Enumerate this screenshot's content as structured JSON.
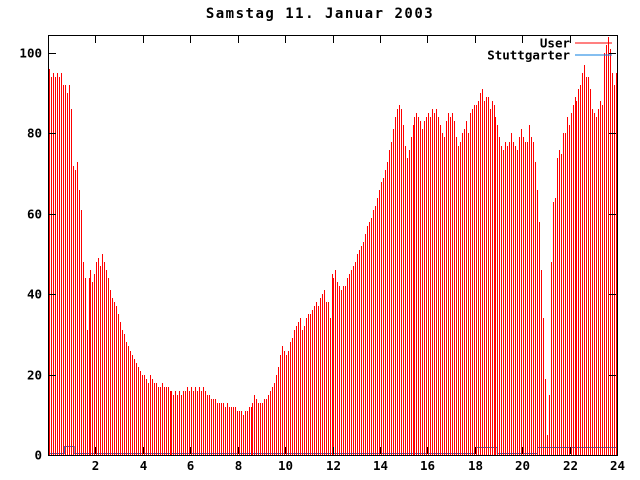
{
  "chart": {
    "title": "Samstag 11. Januar 2003",
    "background_color": "#ffffff",
    "axis_color": "#000000",
    "legend_position": "top-right-inside"
  },
  "chart_data": {
    "type": "bar",
    "title": "Samstag 11. Januar 2003",
    "xlabel": "",
    "ylabel": "",
    "x_unit": "hour-of-day",
    "interval_minutes": 5,
    "xlim": [
      0,
      24
    ],
    "ylim": [
      0,
      104.5
    ],
    "xticks": [
      2,
      4,
      6,
      8,
      10,
      12,
      14,
      16,
      18,
      20,
      22,
      24
    ],
    "yticks": [
      0,
      20,
      40,
      60,
      80,
      100
    ],
    "grid": false,
    "legend_position": "top-right-inside",
    "series": [
      {
        "name": "User",
        "style": "impulses",
        "color": "#ff0000",
        "values": [
          96,
          94,
          95,
          94,
          95,
          94,
          95,
          92,
          92,
          90,
          92,
          86,
          72,
          71,
          73,
          66,
          61,
          48,
          44,
          31,
          44,
          46,
          43,
          45,
          48,
          49,
          47,
          50,
          48,
          46,
          44,
          41,
          39,
          38,
          37,
          35,
          33,
          31,
          30,
          28,
          27,
          26,
          25,
          24,
          23,
          22,
          21,
          20,
          20,
          19,
          18,
          20,
          19,
          18,
          18,
          17,
          17,
          18,
          17,
          17,
          17,
          16,
          16,
          15,
          16,
          15,
          16,
          15,
          16,
          16,
          17,
          16,
          17,
          16,
          17,
          16,
          17,
          16,
          17,
          16,
          15,
          15,
          14,
          14,
          14,
          13,
          13,
          13,
          13,
          12,
          13,
          12,
          12,
          12,
          12,
          11,
          11,
          11,
          10,
          11,
          11,
          12,
          12,
          13,
          15,
          14,
          13,
          13,
          13,
          14,
          14,
          15,
          16,
          17,
          18,
          20,
          22,
          25,
          27,
          26,
          25,
          26,
          28,
          29,
          31,
          32,
          33,
          34,
          31,
          32,
          34,
          35,
          35,
          36,
          37,
          38,
          37,
          39,
          40,
          41,
          38,
          38,
          34,
          45,
          44,
          46,
          43,
          42,
          41,
          42,
          42,
          44,
          45,
          46,
          47,
          48,
          50,
          51,
          52,
          53,
          55,
          57,
          58,
          59,
          61,
          62,
          64,
          66,
          68,
          69,
          71,
          73,
          76,
          78,
          81,
          84,
          86,
          87,
          86,
          82,
          77,
          74,
          76,
          79,
          82,
          84,
          85,
          84,
          83,
          81,
          83,
          84,
          85,
          84,
          86,
          85,
          86,
          84,
          82,
          80,
          79,
          83,
          85,
          84,
          85,
          83,
          79,
          77,
          78,
          80,
          81,
          83,
          80,
          85,
          86,
          87,
          87,
          88,
          90,
          91,
          88,
          89,
          89,
          86,
          88,
          87,
          84,
          82,
          79,
          77,
          76,
          78,
          77,
          78,
          80,
          78,
          77,
          76,
          79,
          81,
          79,
          78,
          78,
          82,
          79,
          78,
          73,
          66,
          58,
          46,
          34,
          19,
          5,
          15,
          48,
          63,
          64,
          74,
          76,
          75,
          80,
          80,
          84,
          82,
          85,
          87,
          89,
          88,
          91,
          92,
          95,
          97,
          94,
          94,
          91,
          86,
          85,
          84,
          86,
          88,
          87,
          100,
          102,
          104,
          101,
          95,
          92,
          95
        ]
      },
      {
        "name": "Stuttgarter",
        "style": "line",
        "color": "#0b7fe0",
        "segments": [
          {
            "from_hour": 0.0,
            "to_hour": 0.7,
            "value": 0.6
          },
          {
            "from_hour": 0.7,
            "to_hour": 1.1,
            "value": 2.2
          },
          {
            "from_hour": 1.1,
            "to_hour": 18.05,
            "value": 0.6
          },
          {
            "from_hour": 18.05,
            "to_hour": 18.95,
            "value": 2.0
          },
          {
            "from_hour": 18.95,
            "to_hour": 20.65,
            "value": 0.6
          },
          {
            "from_hour": 20.65,
            "to_hour": 24.0,
            "value": 2.0
          }
        ]
      }
    ]
  }
}
